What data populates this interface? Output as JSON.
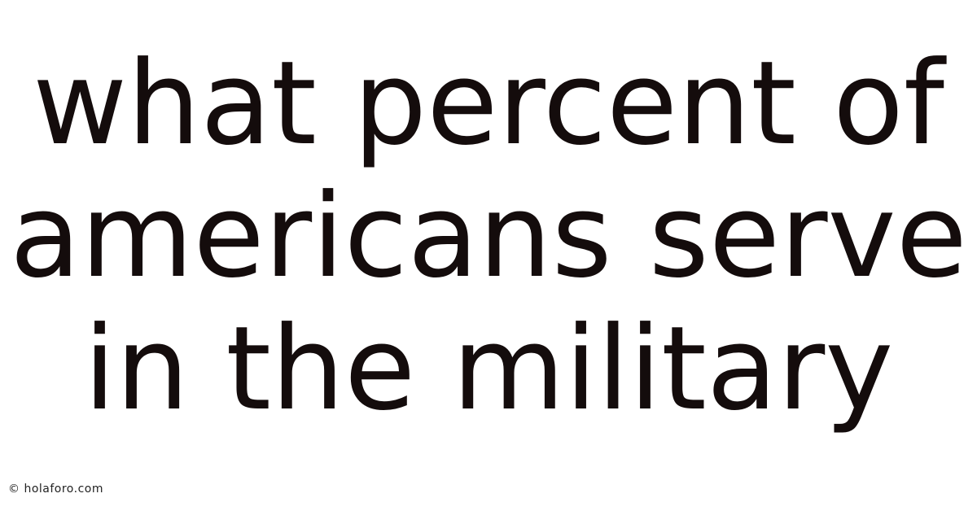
{
  "headline": {
    "lines": [
      "what percent of",
      "americans serve",
      "in the military"
    ]
  },
  "watermark": {
    "icon": "copyright-icon",
    "text": "© holaforo.com"
  },
  "colors": {
    "text": "#140c0c",
    "background": "#ffffff"
  }
}
